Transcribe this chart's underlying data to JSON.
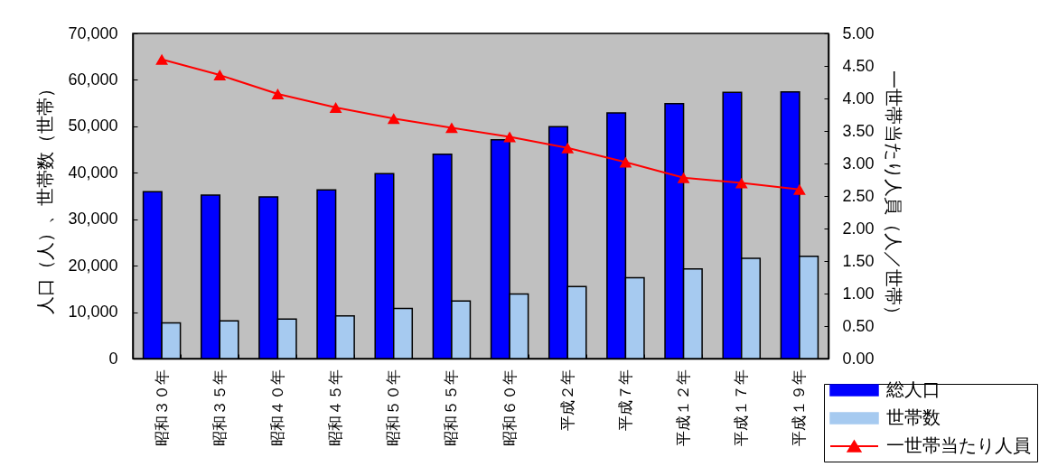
{
  "chart_data": {
    "type": "bar",
    "categories": [
      "昭和３０年",
      "昭和３５年",
      "昭和４０年",
      "昭和４５年",
      "昭和５０年",
      "昭和５５年",
      "昭和６０年",
      "平成２年",
      "平成７年",
      "平成１２年",
      "平成１７年",
      "平成１９年"
    ],
    "ylabel": "人口（人）、世帯数（世帯）",
    "y2label": "一世帯当たり人員（人／世帯）",
    "ylim": [
      0,
      70000
    ],
    "yticks": [
      0,
      {
        "value": 10000,
        "label": "10,000"
      },
      {
        "value": 20000,
        "label": "20,000"
      },
      {
        "value": 30000,
        "label": "30,000"
      },
      {
        "value": 40000,
        "label": "40,000"
      },
      {
        "value": 50000,
        "label": "50,000"
      },
      {
        "value": 60000,
        "label": "60,000"
      },
      {
        "value": 70000,
        "label": "70,000"
      }
    ],
    "y2lim": [
      0,
      5
    ],
    "y2ticks": [
      {
        "value": 0,
        "label": "0.00"
      },
      {
        "value": 0.5,
        "label": "0.50"
      },
      {
        "value": 1,
        "label": "1.00"
      },
      {
        "value": 1.5,
        "label": "1.50"
      },
      {
        "value": 2,
        "label": "2.00"
      },
      {
        "value": 2.5,
        "label": "2.50"
      },
      {
        "value": 3,
        "label": "3.00"
      },
      {
        "value": 3.5,
        "label": "3.50"
      },
      {
        "value": 4,
        "label": "4.00"
      },
      {
        "value": 4.5,
        "label": "4.50"
      },
      {
        "value": 5,
        "label": "5.00"
      }
    ],
    "series": [
      {
        "name": "総人口",
        "color": "#0000ff",
        "values": [
          35900,
          35200,
          34800,
          36300,
          39800,
          44000,
          47100,
          49900,
          52900,
          54900,
          57300,
          57400
        ]
      },
      {
        "name": "世帯数",
        "color": "#a6caf0",
        "values": [
          7700,
          8100,
          8500,
          9200,
          10800,
          12400,
          13900,
          15500,
          17400,
          19300,
          21600,
          22000
        ]
      },
      {
        "name": "一世帯当たり人員",
        "type": "line",
        "axis": "y2",
        "color": "#ff0000",
        "values": [
          4.6,
          4.36,
          4.07,
          3.86,
          3.69,
          3.55,
          3.41,
          3.24,
          3.02,
          2.78,
          2.7,
          2.6
        ]
      }
    ],
    "marker": "triangle",
    "legend": "bottom right"
  }
}
